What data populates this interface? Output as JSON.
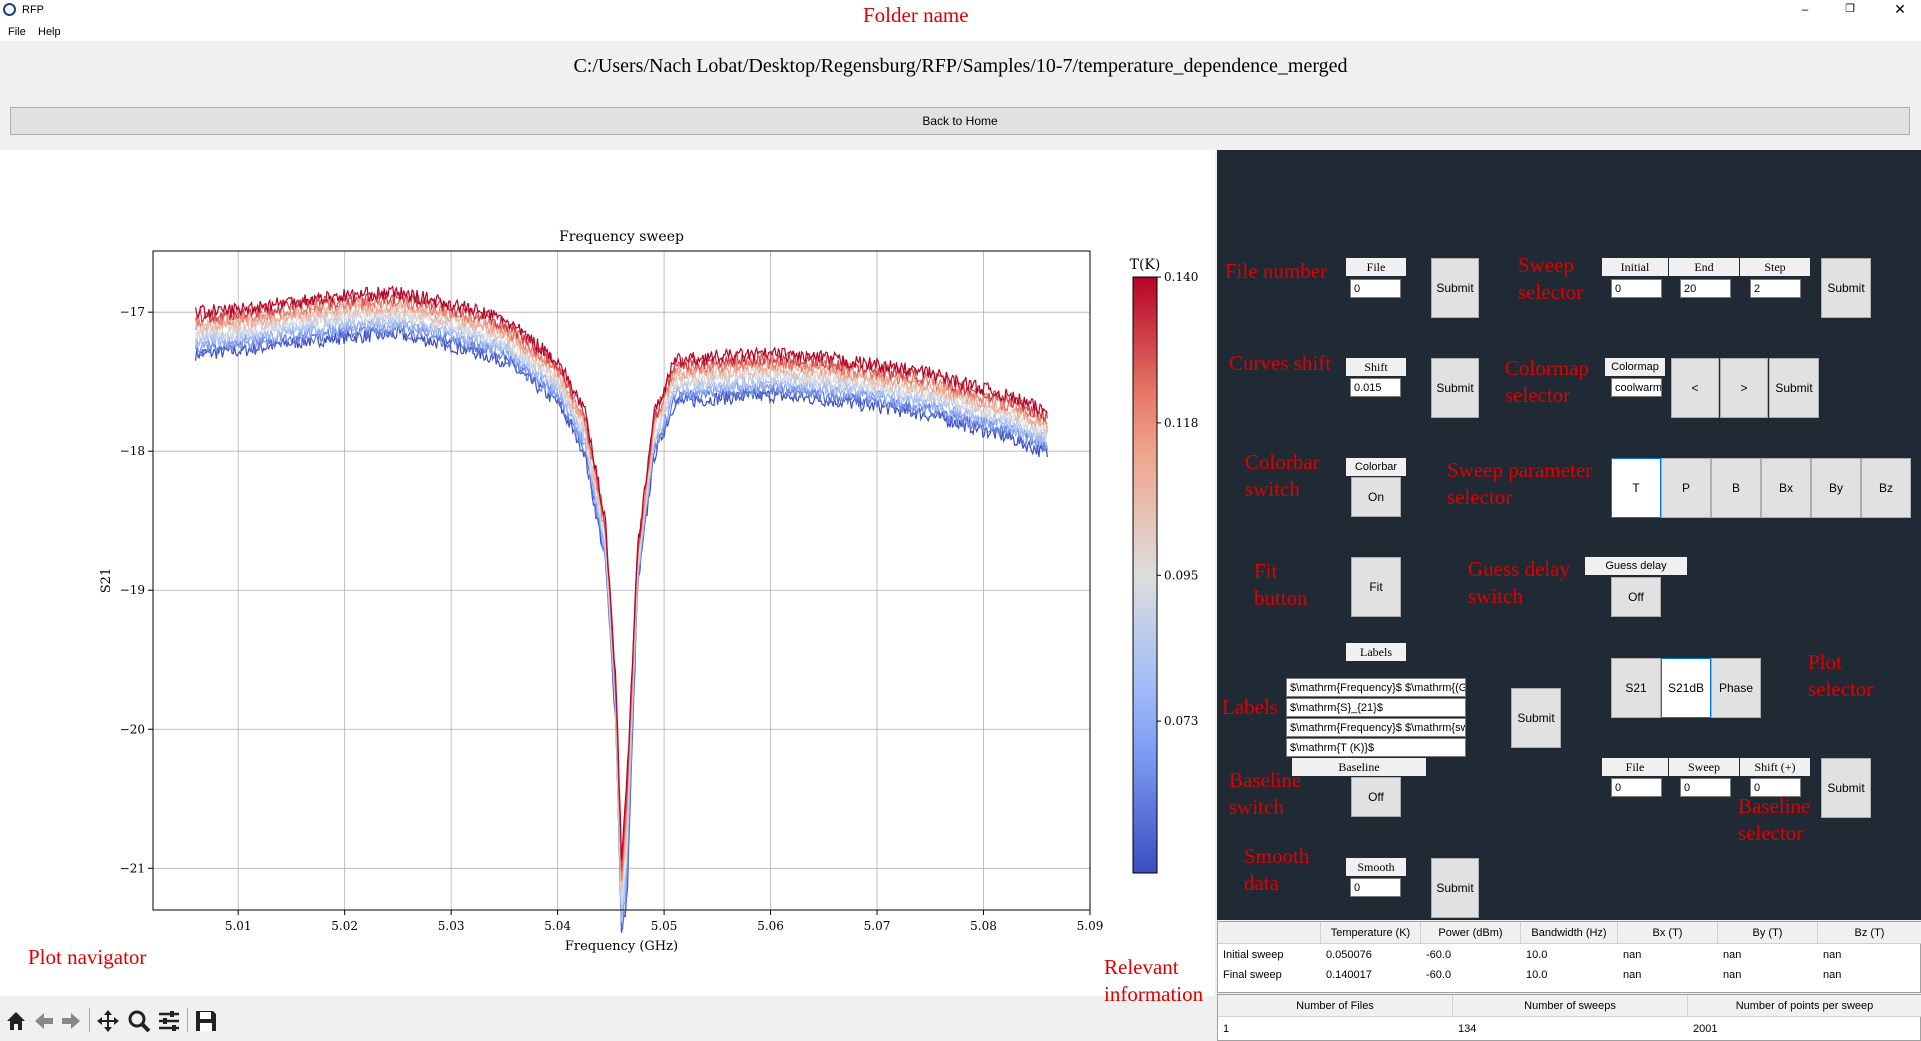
{
  "window": {
    "title": "RFP",
    "menu": [
      "File",
      "Help"
    ],
    "controls": [
      "minimize-icon",
      "restore-icon",
      "close-icon"
    ]
  },
  "annotations": {
    "folder_name": "Folder name",
    "plot_navigator": "Plot navigator",
    "relevant_information": "Relevant\ninformation",
    "file_number": "File number",
    "sweep_selector": "Sweep\nselector",
    "curves_shift": "Curves shift",
    "colormap_selector": "Colormap\nselector",
    "colorbar_switch": "Colorbar\nswitch",
    "sweep_parameter_selector": "Sweep parameter\nselector",
    "fit_button": "Fit\nbutton",
    "guess_delay_switch": "Guess delay\nswitch",
    "labels": "Labels",
    "plot_selector": "Plot\nselector",
    "baseline_switch": "Baseline\nswitch",
    "baseline_selector": "Baseline\nselector",
    "smooth_data": "Smooth\ndata"
  },
  "folder_path": "C:/Users/Nach Lobat/Desktop/Regensburg/RFP/Samples/10-7/temperature_dependence_merged",
  "back_button": "Back to Home",
  "controls": {
    "file_label": "File",
    "file_value": "0",
    "submit": "Submit",
    "initial_label": "Initial",
    "end_label": "End",
    "step_label": "Step",
    "initial_value": "0",
    "end_value": "20",
    "step_value": "2",
    "shift_label": "Shift",
    "shift_value": "0.015",
    "colormap_label": "Colormap",
    "colormap_value": "coolwarm",
    "prev": "<",
    "next": ">",
    "colorbar_label": "Colorbar",
    "colorbar_value": "On",
    "params": [
      "T",
      "P",
      "B",
      "Bx",
      "By",
      "Bz"
    ],
    "selected_param": "T",
    "fit": "Fit",
    "guess_delay_label": "Guess delay",
    "guess_delay_value": "Off",
    "labels_label": "Labels",
    "label_values": [
      "$\\mathrm{Frequency}$ $\\mathrm{(GHz)}$",
      "$\\mathrm{S}_{21}$",
      "$\\mathrm{Frequency}$ $\\mathrm{sweep}$",
      "$\\mathrm{T (K)}$"
    ],
    "plots": [
      "S21",
      "S21dB",
      "Phase"
    ],
    "selected_plot": "S21dB",
    "baseline_label": "Baseline",
    "baseline_value": "Off",
    "bl_file_label": "File",
    "bl_sweep_label": "Sweep",
    "bl_shift_label": "Shift (+)",
    "bl_file_value": "0",
    "bl_sweep_value": "0",
    "bl_shift_value": "0",
    "smooth_label": "Smooth",
    "smooth_value": "0"
  },
  "info_table": {
    "headers": [
      "",
      "Temperature (K)",
      "Power (dBm)",
      "Bandwidth (Hz)",
      "Bx (T)",
      "By (T)",
      "Bz (T)"
    ],
    "rows": [
      [
        "Initial sweep",
        "0.050076",
        "-60.0",
        "10.0",
        "nan",
        "nan",
        "nan"
      ],
      [
        "Final sweep",
        "0.140017",
        "-60.0",
        "10.0",
        "nan",
        "nan",
        "nan"
      ]
    ]
  },
  "summary_table": {
    "headers": [
      "Number of Files",
      "Number of sweeps",
      "Number of points per sweep"
    ],
    "row": [
      "1",
      "134",
      "2001"
    ]
  },
  "toolbar_icons": [
    "home-icon",
    "back-arrow-icon",
    "forward-arrow-icon",
    "pan-icon",
    "zoom-icon",
    "configure-icon",
    "save-icon"
  ],
  "chart_data": {
    "type": "line",
    "title": "Frequency sweep",
    "xlabel": "Frequency (GHz)",
    "ylabel": "S21",
    "xlim": [
      5.002,
      5.09
    ],
    "ylim": [
      -21.3,
      -16.56
    ],
    "xticks": [
      5.01,
      5.02,
      5.03,
      5.04,
      5.05,
      5.06,
      5.07,
      5.08,
      5.09
    ],
    "xtick_labels": [
      "5.01",
      "5.02",
      "5.03",
      "5.04",
      "5.05",
      "5.06",
      "5.07",
      "5.08",
      "5.09"
    ],
    "yticks": [
      -17,
      -18,
      -19,
      -20,
      -21
    ],
    "ytick_labels": [
      "−17",
      "−18",
      "−19",
      "−20",
      "−21"
    ],
    "grid": true,
    "colormap": "coolwarm",
    "series_T_range": [
      0.050076,
      0.140017
    ],
    "baseline_points": {
      "x": [
        5.006,
        5.01,
        5.015,
        5.02,
        5.025,
        5.03,
        5.035,
        5.04,
        5.0425,
        5.0445,
        5.0455,
        5.046,
        5.0465,
        5.0475,
        5.049,
        5.051,
        5.055,
        5.06,
        5.065,
        5.07,
        5.075,
        5.08,
        5.083,
        5.086
      ],
      "y": [
        -17.0,
        -16.98,
        -16.92,
        -16.88,
        -16.86,
        -16.94,
        -17.05,
        -17.35,
        -17.7,
        -18.5,
        -19.7,
        -20.9,
        -20.4,
        -18.7,
        -17.75,
        -17.35,
        -17.32,
        -17.3,
        -17.33,
        -17.38,
        -17.44,
        -17.55,
        -17.62,
        -17.72
      ]
    },
    "curve_shift": 0.015,
    "shifted_dip_depth_boost": -0.55,
    "colorbar": {
      "label": "T(K)",
      "ticks": [
        0.14,
        0.118,
        0.095,
        0.073
      ],
      "tick_labels": [
        "0.140",
        "0.118",
        "0.095",
        "0.073"
      ],
      "range": [
        0.050076,
        0.140017
      ]
    }
  }
}
